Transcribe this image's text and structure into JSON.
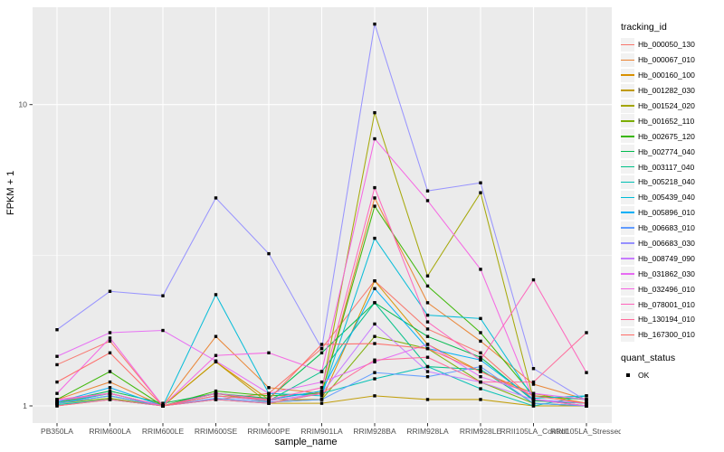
{
  "chart_data": {
    "type": "line",
    "title": "",
    "xlabel": "sample_name",
    "ylabel": "FPKM + 1",
    "yscale": "log10",
    "ylim": [
      0.88,
      21
    ],
    "yticks": [
      1,
      10
    ],
    "ytick_labels": [
      "1",
      "10"
    ],
    "minor_gridlines": [
      3.162
    ],
    "grid": "on",
    "panel_bg": "#EBEBEB",
    "grid_color": "#FFFFFF",
    "tick_label_color": "#4d4d4d",
    "point_style": "black-square",
    "legend_position": "right",
    "legend_title": "tracking_id",
    "categories": [
      "PB350LA",
      "RRIM600LA",
      "RRIM600LE",
      "RRIM600SE",
      "RRIM600PE",
      "RRIM901LA",
      "RRIM928BA",
      "RRIM928LA",
      "RRIM928LE",
      "RRII105LA_Control",
      "RRII105LA_Stressed"
    ],
    "series": [
      {
        "name": "Hb_000050_130",
        "color": "#F8766D",
        "values": [
          1.37,
          1.64,
          1.0,
          1.05,
          1.1,
          1.55,
          2.6,
          1.8,
          1.5,
          1.05,
          1.0
        ]
      },
      {
        "name": "Hb_000067_010",
        "color": "#EA8331",
        "values": [
          1.05,
          1.2,
          1.0,
          1.7,
          1.15,
          1.1,
          4.9,
          2.2,
          1.64,
          1.18,
          1.05
        ]
      },
      {
        "name": "Hb_000160_100",
        "color": "#D89000",
        "values": [
          1.02,
          1.1,
          1.0,
          1.4,
          1.05,
          1.05,
          2.6,
          1.6,
          1.3,
          1.1,
          1.02
        ]
      },
      {
        "name": "Hb_001282_030",
        "color": "#C09B00",
        "values": [
          1.0,
          1.05,
          1.0,
          1.4,
          1.02,
          1.02,
          1.08,
          1.05,
          1.05,
          1.0,
          1.0
        ]
      },
      {
        "name": "Hb_001524_020",
        "color": "#A3A500",
        "values": [
          1.03,
          1.1,
          1.0,
          1.1,
          1.05,
          1.12,
          9.4,
          2.7,
          5.1,
          1.05,
          1.0
        ]
      },
      {
        "name": "Hb_001652_110",
        "color": "#7CAE00",
        "values": [
          1.02,
          1.06,
          1.0,
          1.1,
          1.03,
          1.05,
          1.7,
          1.55,
          1.2,
          1.02,
          1.0
        ]
      },
      {
        "name": "Hb_002675_120",
        "color": "#39B600",
        "values": [
          1.05,
          1.3,
          1.0,
          1.12,
          1.08,
          1.1,
          4.6,
          2.5,
          1.75,
          1.08,
          1.05
        ]
      },
      {
        "name": "Hb_002774_040",
        "color": "#00BB4E",
        "values": [
          1.03,
          1.12,
          1.02,
          1.1,
          1.06,
          1.5,
          2.2,
          1.7,
          1.45,
          1.04,
          1.02
        ]
      },
      {
        "name": "Hb_003117_040",
        "color": "#00C087",
        "values": [
          1.02,
          1.08,
          1.0,
          1.08,
          1.04,
          1.3,
          2.2,
          1.35,
          1.32,
          1.02,
          1.0
        ]
      },
      {
        "name": "Hb_005218_040",
        "color": "#00C0B4",
        "values": [
          1.01,
          1.05,
          1.0,
          1.05,
          1.02,
          1.1,
          1.23,
          1.35,
          1.14,
          1.0,
          1.08
        ]
      },
      {
        "name": "Hb_005439_040",
        "color": "#00BCD8",
        "values": [
          1.02,
          1.1,
          1.0,
          2.34,
          1.1,
          1.08,
          3.6,
          2.0,
          1.95,
          1.06,
          1.08
        ]
      },
      {
        "name": "Hb_005896_010",
        "color": "#00B0F6",
        "values": [
          1.03,
          1.15,
          1.0,
          1.1,
          1.05,
          1.12,
          2.45,
          1.55,
          1.42,
          1.05,
          1.02
        ]
      },
      {
        "name": "Hb_006683_010",
        "color": "#619CFF",
        "values": [
          1.02,
          1.08,
          1.0,
          1.06,
          1.03,
          1.05,
          1.29,
          1.25,
          1.35,
          1.02,
          1.0
        ]
      },
      {
        "name": "Hb_006683_030",
        "color": "#9590FF",
        "values": [
          1.79,
          2.4,
          2.32,
          4.9,
          3.2,
          1.55,
          18.5,
          5.17,
          5.5,
          1.33,
          1.04
        ]
      },
      {
        "name": "Hb_008749_090",
        "color": "#C77CFF",
        "values": [
          1.04,
          1.1,
          1.0,
          1.08,
          1.04,
          1.1,
          1.87,
          1.3,
          1.2,
          1.05,
          1.02
        ]
      },
      {
        "name": "Hb_031862_030",
        "color": "#E76BF3",
        "values": [
          1.46,
          1.75,
          1.78,
          1.41,
          1.1,
          1.2,
          1.4,
          1.6,
          1.25,
          1.1,
          1.05
        ]
      },
      {
        "name": "Hb_032496_010",
        "color": "#F564E3",
        "values": [
          1.1,
          1.68,
          1.0,
          1.47,
          1.5,
          1.3,
          7.7,
          4.8,
          2.84,
          1.05,
          1.0
        ]
      },
      {
        "name": "Hb_078001_010",
        "color": "#FF62BC",
        "values": [
          1.05,
          1.1,
          1.0,
          1.1,
          1.05,
          1.15,
          5.3,
          1.9,
          1.42,
          2.62,
          1.29
        ]
      },
      {
        "name": "Hb_130194_010",
        "color": "#FF6A9A",
        "values": [
          1.0,
          1.05,
          1.0,
          1.05,
          1.02,
          1.1,
          1.42,
          1.45,
          1.2,
          1.2,
          1.75
        ]
      },
      {
        "name": "Hb_167300_010",
        "color": "#FF6C67",
        "values": [
          1.2,
          1.5,
          1.0,
          1.08,
          1.05,
          1.6,
          1.61,
          1.55,
          1.3,
          1.08,
          1.02
        ]
      }
    ],
    "quant_status": {
      "title": "quant_status",
      "items": [
        {
          "label": "OK",
          "marker": "black-square"
        }
      ]
    }
  }
}
